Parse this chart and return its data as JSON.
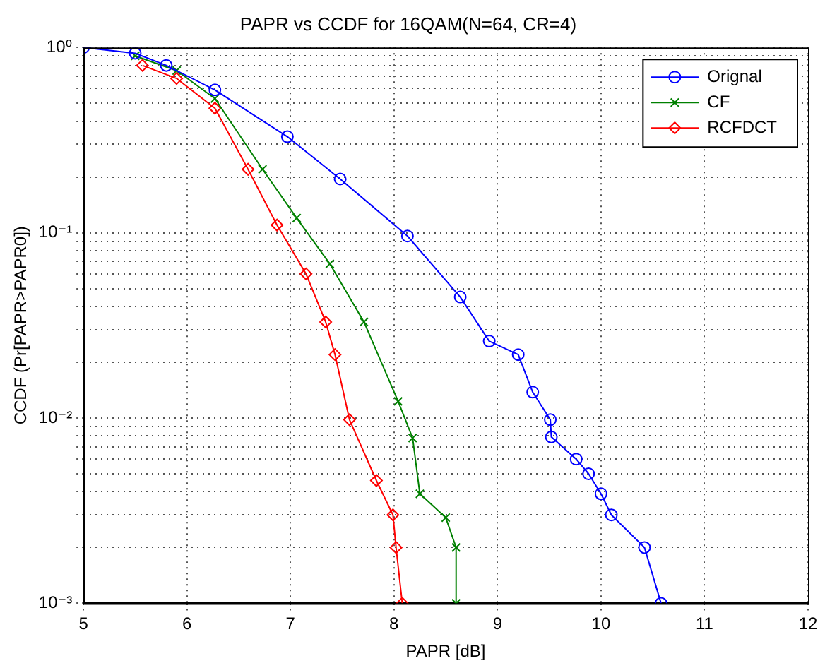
{
  "chart_data": {
    "type": "line",
    "title": "PAPR vs CCDF for 16QAM(N=64, CR=4)",
    "xlabel": "PAPR [dB]",
    "ylabel": "CCDF (Pr[PAPR>PAPR0])",
    "log": "y",
    "grid": true,
    "legend": "top right",
    "line_style": "solid",
    "xlim": [
      5,
      12
    ],
    "xticks": [
      5,
      6,
      7,
      8,
      9,
      10,
      11,
      12
    ],
    "ylim": [
      0.001,
      1
    ],
    "yticks": [
      {
        "value": 0.001,
        "label": "10⁻³"
      },
      {
        "value": 0.002,
        "label": null
      },
      {
        "value": 0.003,
        "label": null
      },
      {
        "value": 0.004,
        "label": null
      },
      {
        "value": 0.005,
        "label": null
      },
      {
        "value": 0.006,
        "label": null
      },
      {
        "value": 0.007,
        "label": null
      },
      {
        "value": 0.008,
        "label": null
      },
      {
        "value": 0.009,
        "label": null
      },
      {
        "value": 0.01,
        "label": "10⁻²"
      },
      {
        "value": 0.02,
        "label": null
      },
      {
        "value": 0.03,
        "label": null
      },
      {
        "value": 0.04,
        "label": null
      },
      {
        "value": 0.05,
        "label": null
      },
      {
        "value": 0.06,
        "label": null
      },
      {
        "value": 0.07,
        "label": null
      },
      {
        "value": 0.08,
        "label": null
      },
      {
        "value": 0.09,
        "label": null
      },
      {
        "value": 0.1,
        "label": "10⁻¹"
      },
      {
        "value": 0.2,
        "label": null
      },
      {
        "value": 0.3,
        "label": null
      },
      {
        "value": 0.4,
        "label": null
      },
      {
        "value": 0.5,
        "label": null
      },
      {
        "value": 0.6,
        "label": null
      },
      {
        "value": 0.7,
        "label": null
      },
      {
        "value": 0.8,
        "label": null
      },
      {
        "value": 0.9,
        "label": null
      },
      {
        "value": 1,
        "label": "10⁰"
      }
    ],
    "series": [
      {
        "name": "Orignal",
        "color": "#0000ff",
        "marker": "circle",
        "x": [
          5,
          5.5,
          5.8,
          6.27,
          6.97,
          7.48,
          8.13,
          8.64,
          8.92,
          9.2,
          9.34,
          9.51,
          9.52,
          9.76,
          9.88,
          10.0,
          10.1,
          10.42,
          10.58
        ],
        "values": [
          1,
          0.93,
          0.8,
          0.59,
          0.33,
          0.195,
          0.096,
          0.045,
          0.026,
          0.022,
          0.0138,
          0.0098,
          0.0079,
          0.006,
          0.005,
          0.0039,
          0.003,
          0.002,
          0.001
        ]
      },
      {
        "name": "CF",
        "color": "#008000",
        "marker": "cross",
        "x": [
          5.5,
          5.9,
          6.27,
          6.73,
          7.06,
          7.38,
          7.71,
          8.04,
          8.18,
          8.25,
          8.5,
          8.6,
          8.6
        ],
        "values": [
          0.9,
          0.75,
          0.53,
          0.22,
          0.12,
          0.068,
          0.033,
          0.0123,
          0.0078,
          0.0039,
          0.0029,
          0.002,
          0.001
        ]
      },
      {
        "name": "RCFDCT",
        "color": "#ff0000",
        "marker": "diamond",
        "x": [
          5.57,
          5.9,
          6.27,
          6.59,
          6.87,
          7.15,
          7.34,
          7.43,
          7.57,
          7.83,
          7.99,
          8.02,
          8.08
        ],
        "values": [
          0.8,
          0.68,
          0.47,
          0.22,
          0.11,
          0.06,
          0.033,
          0.022,
          0.0098,
          0.0046,
          0.003,
          0.002,
          0.001
        ]
      }
    ]
  }
}
